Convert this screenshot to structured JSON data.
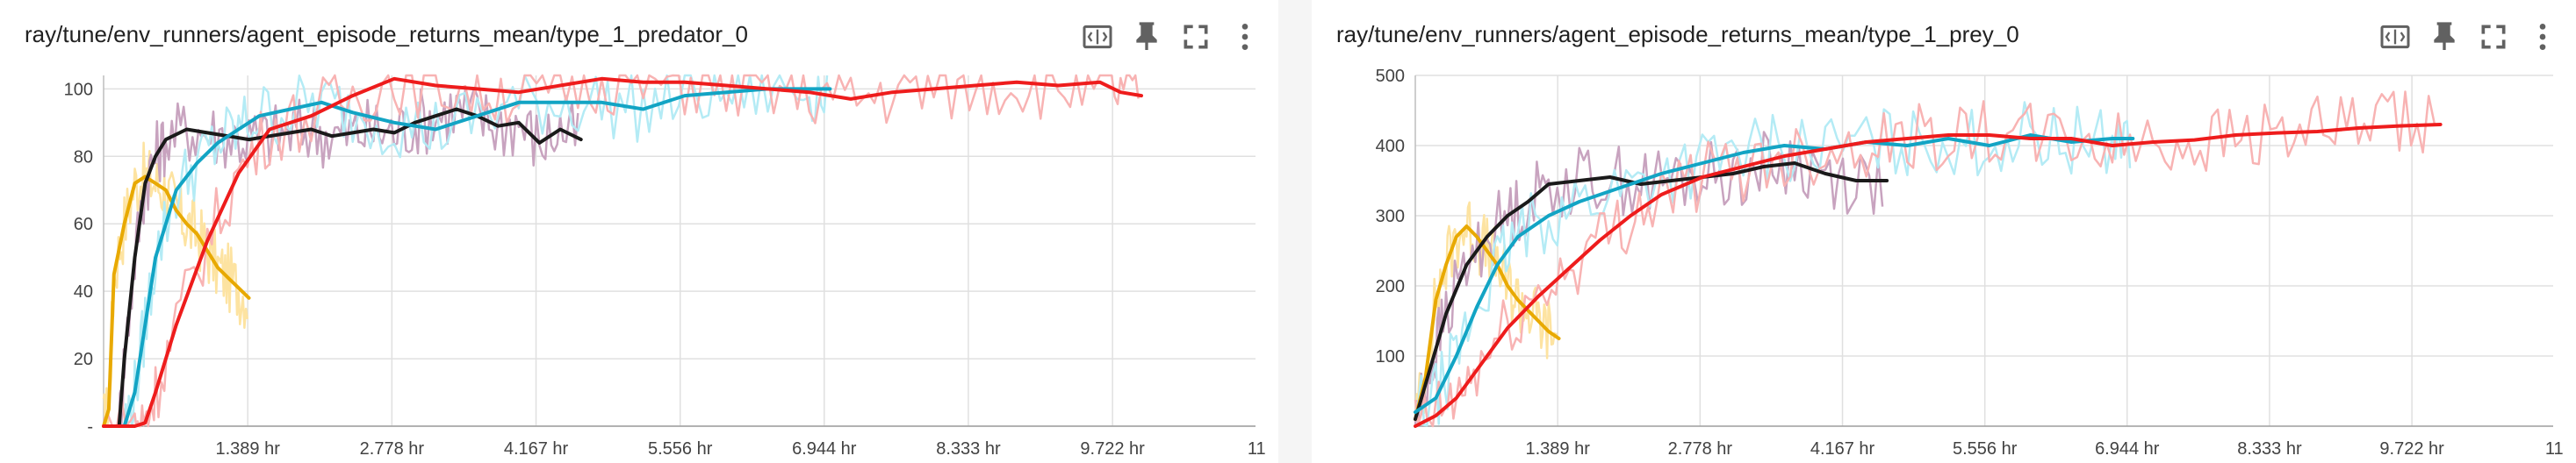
{
  "panels": [
    {
      "title": "ray/tune/env_runners/agent_episode_returns_mean/type_1_predator_0",
      "toolbar": [
        "fit-domain-icon",
        "pin-icon",
        "fullscreen-icon",
        "more-vert-icon"
      ],
      "chart_data": {
        "type": "line",
        "x_unit": "hr",
        "xlim": [
          0,
          11.1
        ],
        "ylim": [
          0,
          104
        ],
        "x_ticks": [
          1.389,
          2.778,
          4.167,
          5.556,
          6.944,
          8.333,
          9.722,
          11.111
        ],
        "x_tick_labels": [
          "1.389 hr",
          "2.778 hr",
          "4.167 hr",
          "5.556 hr",
          "6.944 hr",
          "8.333 hr",
          "9.722 hr",
          "11"
        ],
        "y_ticks": [
          0,
          20,
          40,
          60,
          80,
          100
        ],
        "y_tick_labels": [
          "-",
          "20",
          "40",
          "60",
          "80",
          "100"
        ],
        "grid": true,
        "series": [
          {
            "color": "#e8a900",
            "raw_color": "#fde3a1",
            "x": [
              0,
              0.05,
              0.1,
              0.2,
              0.3,
              0.4,
              0.5,
              0.6,
              0.7,
              0.8,
              0.9,
              1.0,
              1.1,
              1.2,
              1.3,
              1.4
            ],
            "y": [
              0,
              5,
              45,
              60,
              72,
              74,
              72,
              70,
              64,
              60,
              57,
              52,
              47,
              44,
              41,
              38
            ]
          },
          {
            "color": "#1a1a1a",
            "raw_color": "#c8a3bf",
            "x": [
              0.15,
              0.2,
              0.3,
              0.4,
              0.5,
              0.6,
              0.8,
              1.0,
              1.2,
              1.4,
              1.6,
              1.8,
              2.0,
              2.2,
              2.4,
              2.6,
              2.8,
              3.0,
              3.2,
              3.4,
              3.6,
              3.8,
              4.0,
              4.2,
              4.4,
              4.6
            ],
            "y": [
              0,
              20,
              50,
              72,
              80,
              85,
              88,
              87,
              86,
              85,
              86,
              87,
              88,
              86,
              87,
              88,
              87,
              90,
              92,
              94,
              92,
              89,
              90,
              84,
              88,
              85
            ]
          },
          {
            "color": "#12a4c4",
            "raw_color": "#b4ebf5",
            "x": [
              0.2,
              0.3,
              0.4,
              0.5,
              0.7,
              0.9,
              1.1,
              1.3,
              1.5,
              1.8,
              2.1,
              2.4,
              2.8,
              3.2,
              3.6,
              4.0,
              4.4,
              4.8,
              5.2,
              5.6,
              6.0,
              6.4,
              6.8,
              7.0
            ],
            "y": [
              0,
              10,
              30,
              50,
              70,
              78,
              84,
              88,
              92,
              94,
              96,
              93,
              90,
              88,
              92,
              96,
              96,
              96,
              94,
              98,
              99,
              100,
              100,
              100
            ]
          },
          {
            "color": "#ee1c1c",
            "raw_color": "#f8b3b3",
            "x": [
              0,
              0.3,
              0.4,
              0.5,
              0.7,
              1.0,
              1.3,
              1.6,
              2.0,
              2.4,
              2.8,
              3.2,
              3.6,
              4.0,
              4.4,
              4.8,
              5.2,
              5.6,
              6.0,
              6.4,
              6.8,
              7.2,
              7.6,
              8.0,
              8.4,
              8.8,
              9.2,
              9.6,
              9.8,
              10.0
            ],
            "y": [
              0,
              0,
              1,
              10,
              30,
              55,
              75,
              88,
              92,
              98,
              103,
              101,
              100,
              99,
              101,
              103,
              102,
              102,
              101,
              100,
              99,
              97,
              99,
              100,
              101,
              102,
              101,
              102,
              99,
              98
            ]
          }
        ]
      }
    },
    {
      "title": "ray/tune/env_runners/agent_episode_returns_mean/type_1_prey_0",
      "toolbar": [
        "fit-domain-icon",
        "pin-icon",
        "fullscreen-icon",
        "more-vert-icon"
      ],
      "chart_data": {
        "type": "line",
        "x_unit": "hr",
        "xlim": [
          0,
          11.1
        ],
        "ylim": [
          0,
          500
        ],
        "x_ticks": [
          1.389,
          2.778,
          4.167,
          5.556,
          6.944,
          8.333,
          9.722,
          11.111
        ],
        "x_tick_labels": [
          "1.389 hr",
          "2.778 hr",
          "4.167 hr",
          "5.556 hr",
          "6.944 hr",
          "8.333 hr",
          "9.722 hr",
          "11"
        ],
        "y_ticks": [
          100,
          200,
          300,
          400,
          500
        ],
        "y_tick_labels": [
          "100",
          "200",
          "300",
          "400",
          "500"
        ],
        "grid": true,
        "series": [
          {
            "color": "#e8a900",
            "raw_color": "#fde3a1",
            "x": [
              0,
              0.1,
              0.2,
              0.3,
              0.4,
              0.5,
              0.6,
              0.7,
              0.8,
              0.9,
              1.0,
              1.1,
              1.2,
              1.3,
              1.4
            ],
            "y": [
              10,
              70,
              180,
              230,
              270,
              285,
              270,
              250,
              230,
              200,
              180,
              165,
              150,
              135,
              125
            ]
          },
          {
            "color": "#1a1a1a",
            "raw_color": "#c8a3bf",
            "x": [
              0,
              0.1,
              0.2,
              0.3,
              0.5,
              0.7,
              0.9,
              1.1,
              1.3,
              1.6,
              1.9,
              2.2,
              2.5,
              2.8,
              3.1,
              3.4,
              3.7,
              4.0,
              4.3,
              4.6
            ],
            "y": [
              10,
              60,
              110,
              160,
              230,
              270,
              300,
              320,
              345,
              350,
              355,
              345,
              350,
              355,
              360,
              370,
              375,
              360,
              350,
              350
            ]
          },
          {
            "color": "#12a4c4",
            "raw_color": "#b4ebf5",
            "x": [
              0,
              0.2,
              0.4,
              0.6,
              0.8,
              1.0,
              1.3,
              1.6,
              2.0,
              2.4,
              2.8,
              3.2,
              3.6,
              4.0,
              4.4,
              4.8,
              5.2,
              5.6,
              6.0,
              6.4,
              6.8,
              7.0
            ],
            "y": [
              20,
              40,
              100,
              170,
              230,
              270,
              300,
              320,
              340,
              360,
              375,
              390,
              400,
              395,
              405,
              400,
              410,
              400,
              415,
              405,
              410,
              410
            ]
          },
          {
            "color": "#ee1c1c",
            "raw_color": "#f8b3b3",
            "x": [
              0,
              0.2,
              0.4,
              0.6,
              0.9,
              1.2,
              1.5,
              1.8,
              2.1,
              2.4,
              2.8,
              3.2,
              3.6,
              4.0,
              4.4,
              4.8,
              5.2,
              5.6,
              6.0,
              6.4,
              6.8,
              7.2,
              7.6,
              8.0,
              8.4,
              8.8,
              9.2,
              9.6,
              10.0
            ],
            "y": [
              0,
              15,
              40,
              80,
              140,
              185,
              225,
              265,
              300,
              330,
              355,
              370,
              385,
              395,
              405,
              410,
              415,
              415,
              410,
              410,
              400,
              405,
              408,
              415,
              418,
              420,
              425,
              428,
              430
            ]
          }
        ]
      }
    }
  ]
}
